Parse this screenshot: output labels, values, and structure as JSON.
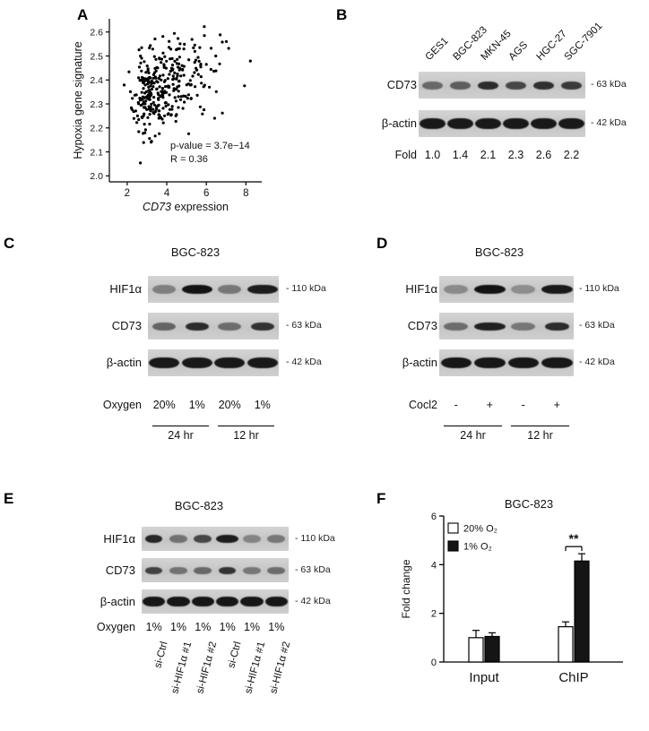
{
  "panels": {
    "A": {
      "label": "A"
    },
    "B": {
      "label": "B",
      "lane_labels": [
        "GES1",
        "BGC-823",
        "MKN-45",
        "AGS",
        "HGC-27",
        "SGC-7901"
      ],
      "rows": [
        {
          "name": "CD73",
          "marker": "- 63 kDa",
          "thickness": 9,
          "bands": [
            0.5,
            0.55,
            0.82,
            0.68,
            0.8,
            0.74
          ]
        },
        {
          "name": "β-actin",
          "marker": "- 42 kDa",
          "thickness": 12,
          "bands": [
            0.92,
            0.92,
            0.92,
            0.92,
            0.92,
            0.92
          ]
        }
      ],
      "fold": {
        "label": "Fold",
        "values": [
          "1.0",
          "1.4",
          "2.1",
          "2.3",
          "2.6",
          "2.2"
        ]
      }
    },
    "C": {
      "label": "C",
      "title": "BGC-823",
      "rows": [
        {
          "name": "HIF1α",
          "marker": "- 110 kDa",
          "thickness": 10,
          "bands": [
            0.38,
            0.95,
            0.42,
            0.9
          ]
        },
        {
          "name": "CD73",
          "marker": "- 63 kDa",
          "thickness": 9,
          "bands": [
            0.52,
            0.82,
            0.48,
            0.78
          ]
        },
        {
          "name": "β-actin",
          "marker": "- 42 kDa",
          "thickness": 12,
          "bands": [
            0.92,
            0.92,
            0.92,
            0.92
          ]
        }
      ],
      "condition": {
        "label": "Oxygen",
        "values": [
          "20%",
          "1%",
          "20%",
          "1%"
        ]
      },
      "groups": [
        {
          "label": "24 hr",
          "from": 0,
          "to": 1
        },
        {
          "label": "12 hr",
          "from": 2,
          "to": 3
        }
      ]
    },
    "D": {
      "label": "D",
      "title": "BGC-823",
      "rows": [
        {
          "name": "HIF1α",
          "marker": "- 110 kDa",
          "thickness": 10,
          "bands": [
            0.32,
            0.95,
            0.3,
            0.92
          ]
        },
        {
          "name": "CD73",
          "marker": "- 63 kDa",
          "thickness": 9,
          "bands": [
            0.48,
            0.88,
            0.42,
            0.82
          ]
        },
        {
          "name": "β-actin",
          "marker": "- 42 kDa",
          "thickness": 12,
          "bands": [
            0.93,
            0.93,
            0.93,
            0.93
          ]
        }
      ],
      "condition": {
        "label": "Cocl2",
        "values": [
          "-",
          "+",
          "-",
          "+"
        ]
      },
      "groups": [
        {
          "label": "24 hr",
          "from": 0,
          "to": 1
        },
        {
          "label": "12 hr",
          "from": 2,
          "to": 3
        }
      ]
    },
    "E": {
      "label": "E",
      "title": "BGC-823",
      "rows": [
        {
          "name": "HIF1α",
          "marker": "- 110 kDa",
          "thickness": 9,
          "bands": [
            0.85,
            0.45,
            0.68,
            0.9,
            0.35,
            0.42
          ]
        },
        {
          "name": "CD73",
          "marker": "- 63 kDa",
          "thickness": 8,
          "bands": [
            0.7,
            0.45,
            0.5,
            0.78,
            0.42,
            0.48
          ]
        },
        {
          "name": "β-actin",
          "marker": "- 42 kDa",
          "thickness": 11,
          "bands": [
            0.93,
            0.93,
            0.93,
            0.93,
            0.93,
            0.93
          ]
        }
      ],
      "condition": {
        "label": "Oxygen",
        "values": [
          "1%",
          "1%",
          "1%",
          "1%",
          "1%",
          "1%"
        ]
      },
      "lane_labels": [
        "si-Ctrl",
        "si-HIF1α #1",
        "si-HIF1α #2",
        "si-Ctrl",
        "si-HIF1α #1",
        "si-HIF1α #2"
      ]
    },
    "F": {
      "label": "F"
    }
  },
  "chart_data": [
    {
      "type": "scatter",
      "panel": "A",
      "xlabel_italic": "CD73",
      "xlabel_rest": " expression",
      "ylabel": "Hypoxia gene signature",
      "xticks": [
        2,
        4,
        6,
        8
      ],
      "yticks": [
        "2.0",
        "2.1",
        "2.2",
        "2.3",
        "2.4",
        "2.5",
        "2.6"
      ],
      "xlim": [
        1.1,
        8.8
      ],
      "ylim": [
        1.975,
        2.655
      ],
      "annotations": [
        "p-value = 3.7e−14",
        "R = 0.36"
      ],
      "cloud": {
        "n": 340,
        "x_base": 1.1,
        "x_scale": 2.6,
        "x_shape": 0.36,
        "y_mean": 2.37,
        "y_sd": 0.1,
        "r": 0.36,
        "seed": 11
      }
    },
    {
      "type": "bar",
      "panel": "F",
      "title": "BGC-823",
      "ylabel": "Fold change",
      "ylim": [
        0,
        6
      ],
      "yticks": [
        0,
        2,
        4,
        6
      ],
      "categories": [
        "Input",
        "ChIP"
      ],
      "series": [
        {
          "name": "20% O₂",
          "fill": "#ffffff",
          "values": [
            1.0,
            1.45
          ],
          "errors": [
            0.3,
            0.2
          ]
        },
        {
          "name": "1% O₂",
          "fill": "#151515",
          "values": [
            1.05,
            4.15
          ],
          "errors": [
            0.15,
            0.3
          ]
        }
      ],
      "significance": {
        "category": "ChIP",
        "label": "**"
      }
    }
  ]
}
